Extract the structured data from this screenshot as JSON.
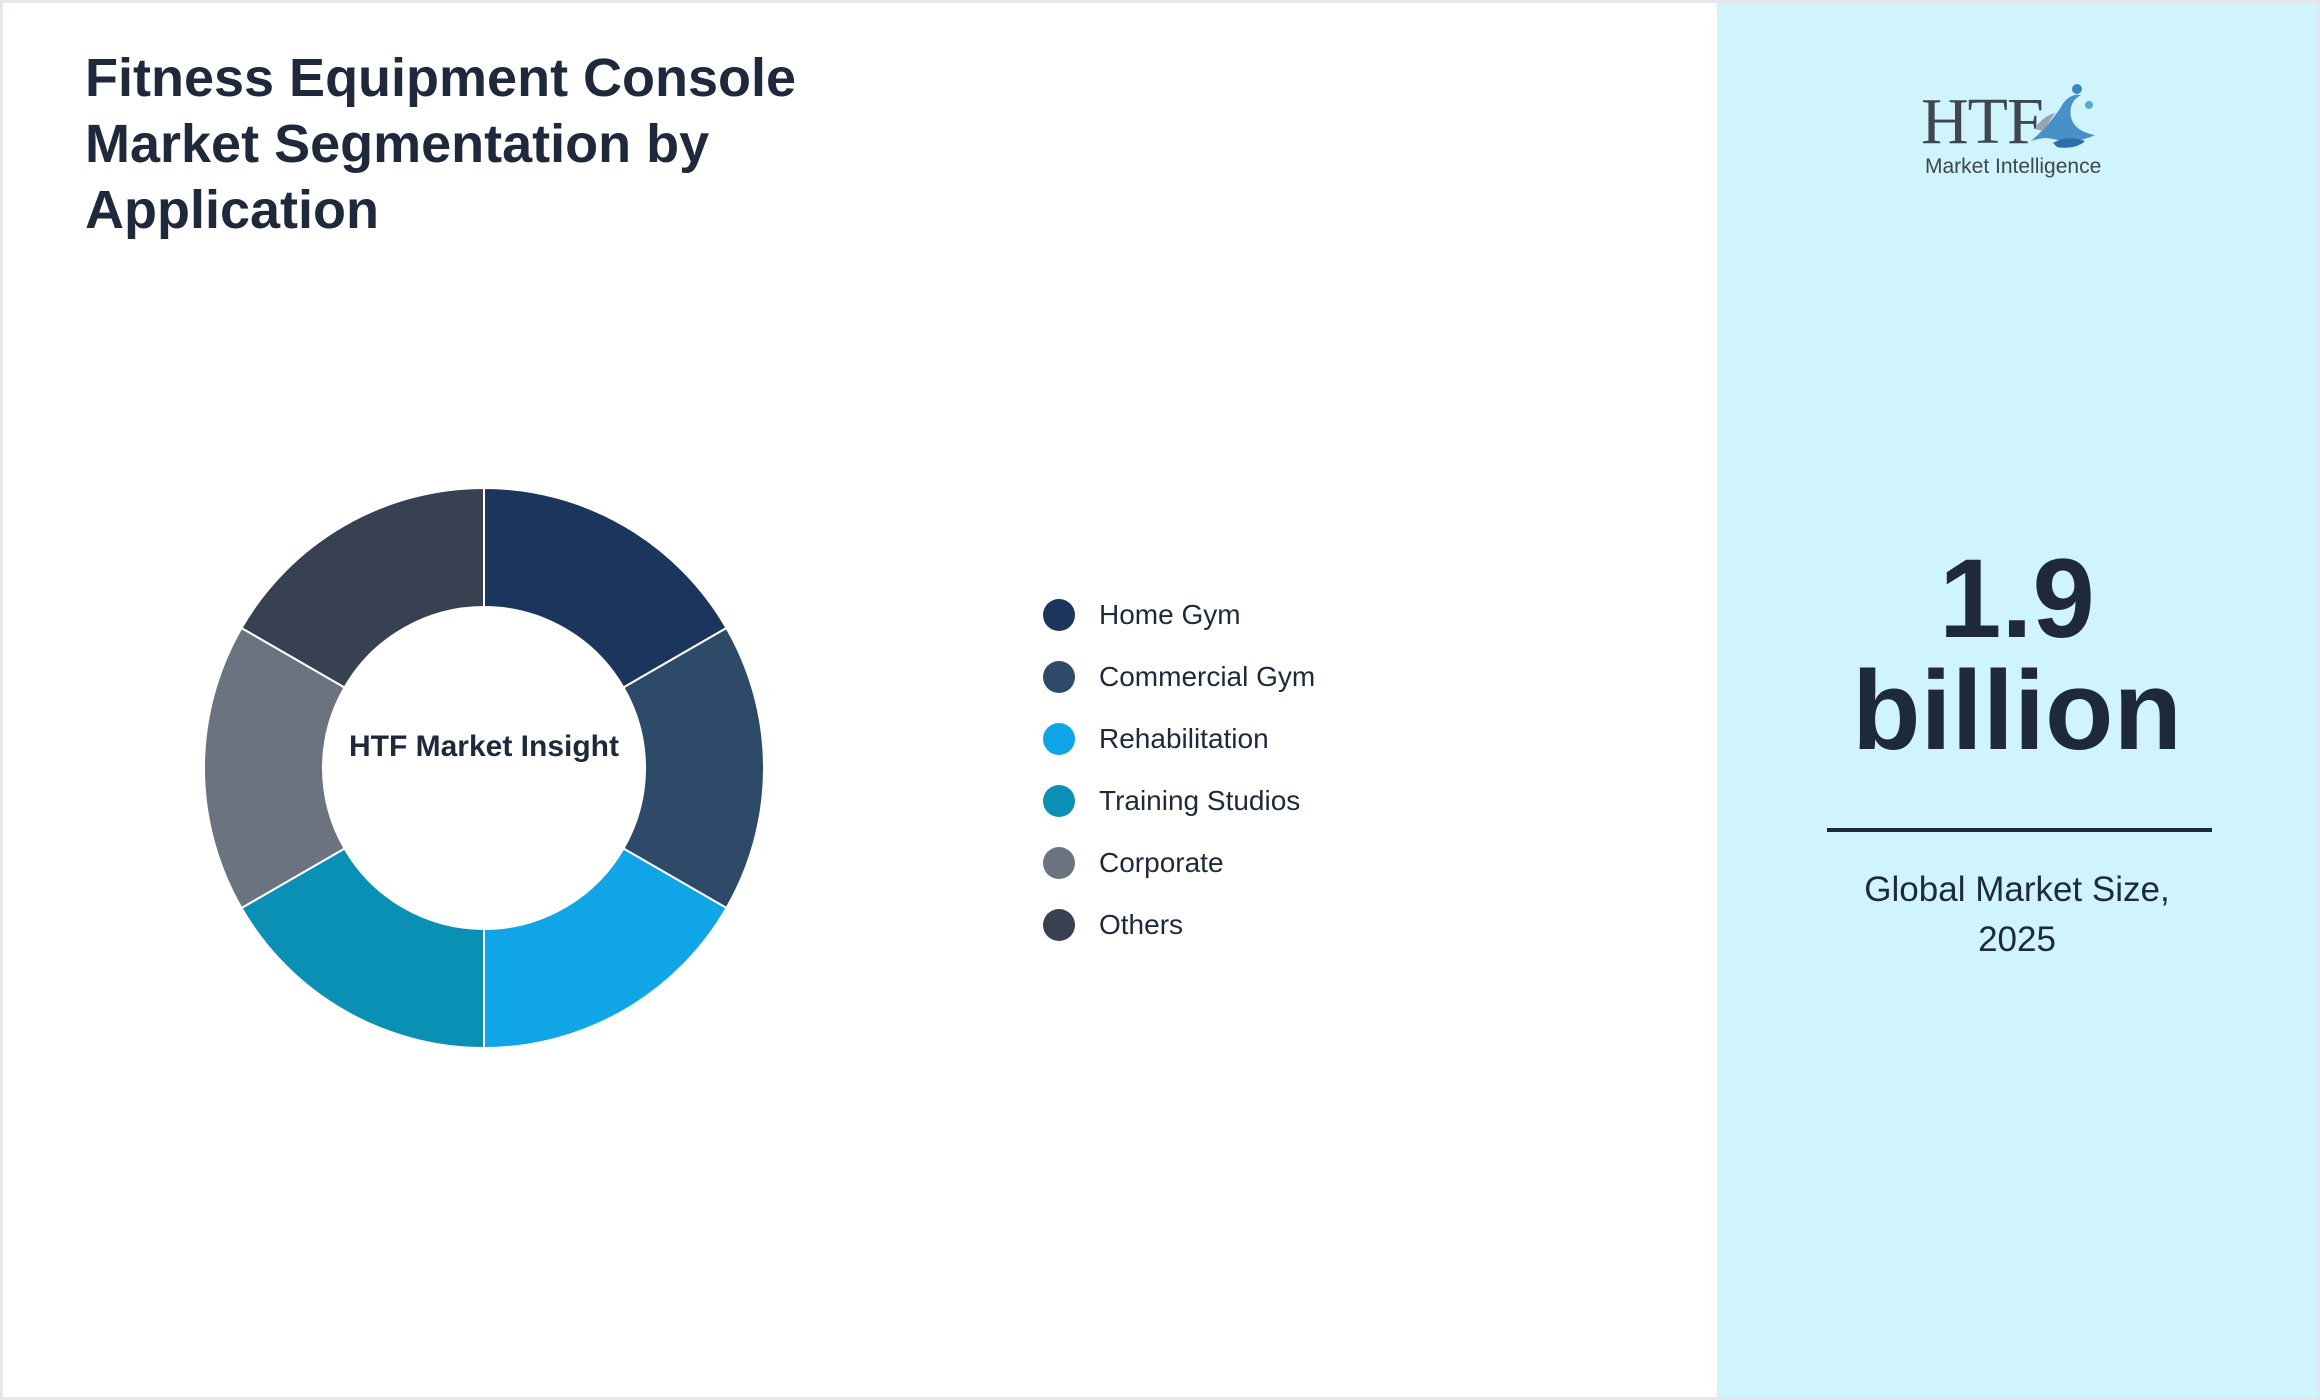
{
  "header": {
    "title": "Fitness Equipment Console Market Segmentation by Application"
  },
  "chart_data": {
    "type": "pie",
    "variant": "donut",
    "title": "Fitness Equipment Console Market Segmentation by Application",
    "center_label": "HTF Market Insight",
    "categories": [
      "Home Gym",
      "Commercial Gym",
      "Rehabilitation",
      "Training Studios",
      "Corporate",
      "Others"
    ],
    "values": [
      1,
      1,
      1,
      1,
      1,
      1
    ],
    "colors": [
      "#1b355c",
      "#2d4a68",
      "#10a5e7",
      "#0b90b5",
      "#6b7280",
      "#374152"
    ],
    "legend_position": "right"
  },
  "side_panel": {
    "value": "1.9",
    "unit": "billion",
    "caption_line1": "Global Market Size,",
    "caption_line2": "2025",
    "background": "#cff4fc"
  },
  "logo": {
    "wordmark": "HTF",
    "tagline": "Market Intelligence"
  }
}
